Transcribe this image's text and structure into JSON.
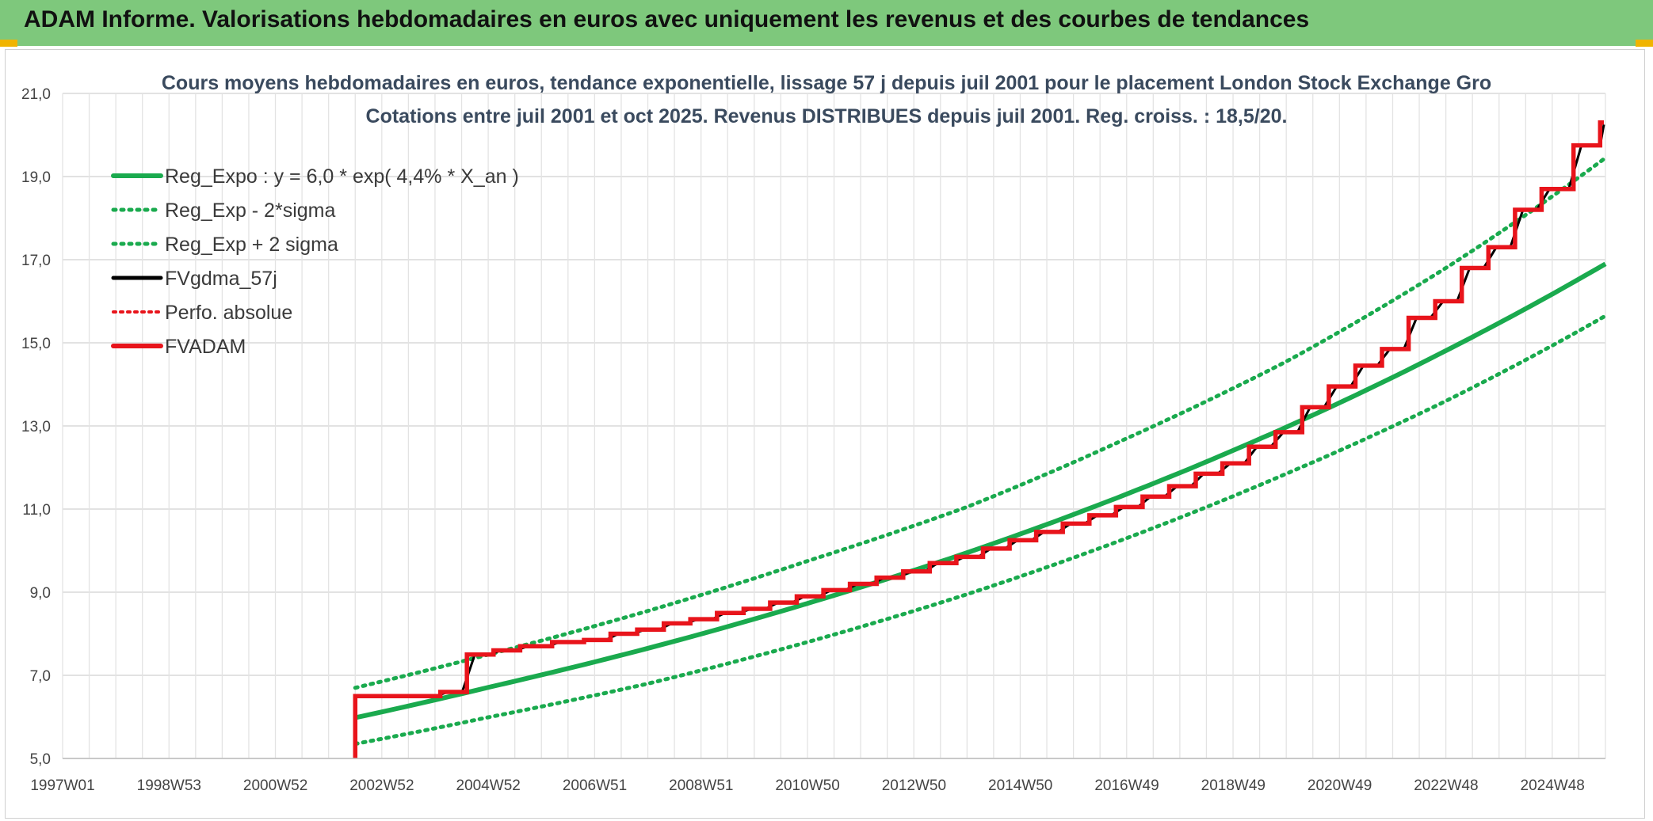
{
  "banner": {
    "title": "ADAM Informe. Valorisations hebdomadaires en euros avec uniquement les revenus et des courbes de tendances"
  },
  "colors": {
    "banner": "#7ec87c",
    "accent": "#f0b400",
    "trend": "#1aaa4e",
    "fvgdma": "#000000",
    "fvadam": "#e8141b",
    "perfo": "#e8141b"
  },
  "chart_data": {
    "type": "line",
    "title": "Cours moyens hebdomadaires en euros, tendance exponentielle, lissage 57 j depuis juil 2001 pour le placement London Stock Exchange Gro",
    "subtitle": "Cotations entre juil 2001 et oct 2025. Revenus DISTRIBUES depuis juil 2001. Reg. croiss. : 18,5/20.",
    "xlabel": "",
    "ylabel": "",
    "x_ticks": [
      "1997W01",
      "1998W53",
      "2000W52",
      "2002W52",
      "2004W52",
      "2006W51",
      "2008W51",
      "2010W50",
      "2012W50",
      "2014W50",
      "2016W49",
      "2018W49",
      "2020W49",
      "2022W48",
      "2024W48"
    ],
    "x_range": [
      1997.0,
      2026.0
    ],
    "ylim": [
      5.0,
      21.0
    ],
    "y_ticks": [
      "5,0",
      "7,0",
      "9,0",
      "11,0",
      "13,0",
      "15,0",
      "17,0",
      "19,0",
      "21,0"
    ],
    "grid": true,
    "legend_position": "top-left",
    "series": [
      {
        "name": "Reg_Expo : y = 6,0 * exp( 4,4% *  X_an )",
        "style": "solid-green",
        "x": [
          2002.5,
          2005.0,
          2008.0,
          2011.0,
          2014.0,
          2017.0,
          2020.0,
          2023.0,
          2026.0
        ],
        "y": [
          5.98,
          6.71,
          7.65,
          8.73,
          9.95,
          11.36,
          12.97,
          14.81,
          16.9
        ]
      },
      {
        "name": "Reg_Exp - 2*sigma",
        "style": "dotted-green",
        "x": [
          2002.5,
          2005.0,
          2008.0,
          2011.0,
          2014.0,
          2017.0,
          2020.0,
          2023.0,
          2026.0
        ],
        "y": [
          5.35,
          5.99,
          6.8,
          7.8,
          8.95,
          10.3,
          11.85,
          13.6,
          15.65
        ]
      },
      {
        "name": "Reg_Exp + 2 sigma",
        "style": "dotted-green",
        "x": [
          2002.5,
          2005.0,
          2008.0,
          2011.0,
          2014.0,
          2017.0,
          2020.0,
          2023.0,
          2026.0
        ],
        "y": [
          6.7,
          7.5,
          8.55,
          9.75,
          11.05,
          12.7,
          14.55,
          16.8,
          19.45
        ]
      },
      {
        "name": "FVgdma_57j",
        "style": "solid-black-smoothed"
      },
      {
        "name": "Perfo. absolue",
        "style": "dotted-red"
      },
      {
        "name": "FVADAM",
        "style": "solid-red-step",
        "steps_x": [
          2002.5,
          2004.1,
          2004.6,
          2005.1,
          2005.6,
          2006.2,
          2006.8,
          2007.3,
          2007.8,
          2008.3,
          2008.8,
          2009.3,
          2009.8,
          2010.3,
          2010.8,
          2011.3,
          2011.8,
          2012.3,
          2012.8,
          2013.3,
          2013.8,
          2014.3,
          2014.8,
          2015.3,
          2015.8,
          2016.3,
          2016.8,
          2017.3,
          2017.8,
          2018.3,
          2018.8,
          2019.3,
          2019.8,
          2020.3,
          2020.8,
          2021.3,
          2021.8,
          2022.3,
          2022.8,
          2023.3,
          2023.8,
          2024.3,
          2024.8,
          2025.4,
          2025.9
        ],
        "steps_y": [
          5.0,
          6.5,
          6.6,
          7.5,
          7.6,
          7.7,
          7.8,
          7.85,
          8.0,
          8.1,
          8.25,
          8.35,
          8.5,
          8.6,
          8.75,
          8.9,
          9.05,
          9.2,
          9.35,
          9.5,
          9.7,
          9.85,
          10.05,
          10.25,
          10.45,
          10.65,
          10.85,
          11.05,
          11.3,
          11.55,
          11.85,
          12.1,
          12.5,
          12.85,
          13.45,
          13.95,
          14.45,
          14.85,
          15.6,
          16.0,
          16.8,
          17.3,
          18.2,
          18.7,
          19.75
        ],
        "last_y": 20.3
      }
    ]
  }
}
